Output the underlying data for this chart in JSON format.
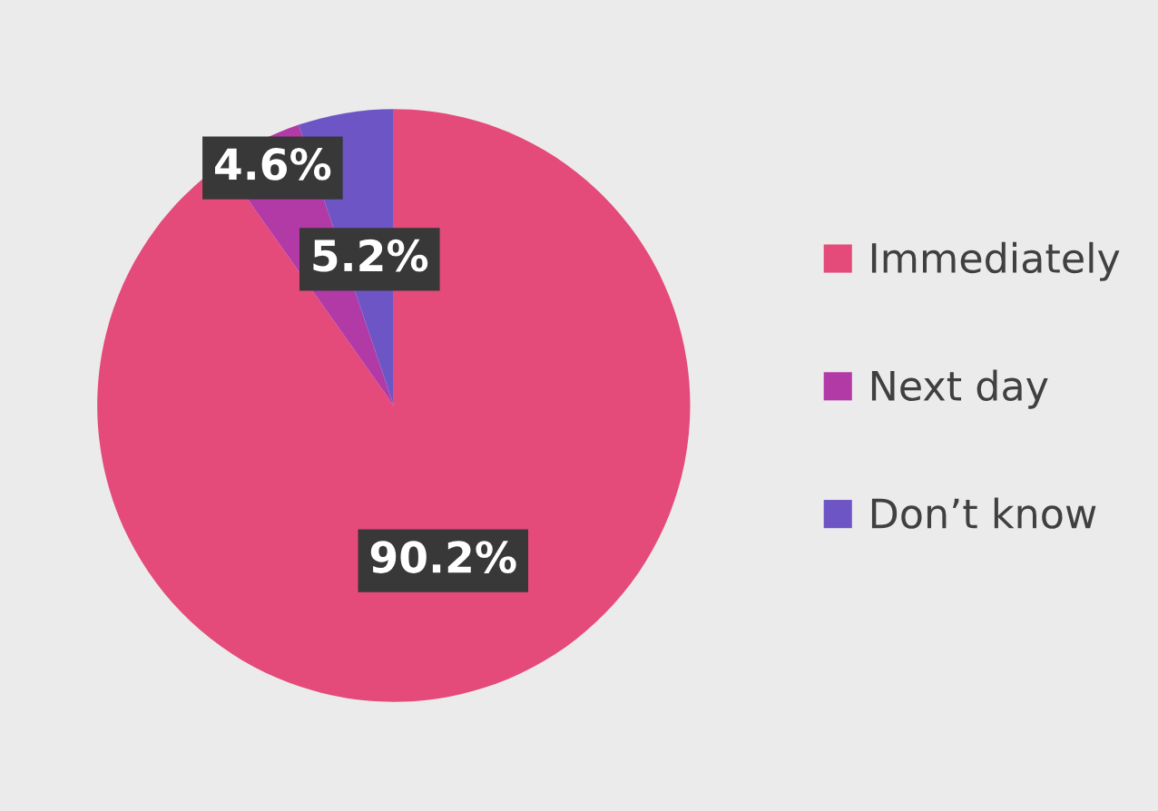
{
  "chart_data": {
    "type": "pie",
    "categories": [
      "Immediately",
      "Next day",
      "Don’t know"
    ],
    "values": [
      90.2,
      4.6,
      5.2
    ],
    "value_labels": [
      "90.2%",
      "4.6%",
      "5.2%"
    ],
    "colors": [
      "#e44a7a",
      "#b23aa6",
      "#6e55c6"
    ],
    "legend": "right"
  }
}
